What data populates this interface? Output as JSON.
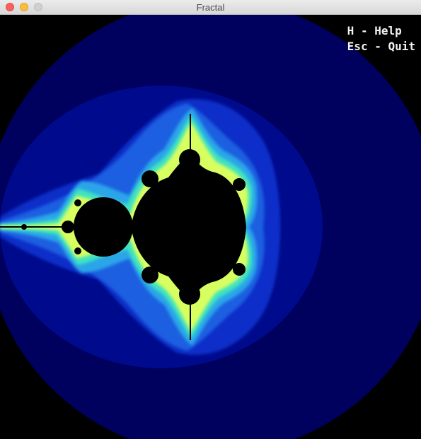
{
  "window": {
    "title": "Fractal"
  },
  "hud": {
    "help_label": "H - Help",
    "quit_label": "Esc - Quit"
  },
  "icons": {
    "close": "close-icon",
    "minimize": "minimize-icon",
    "zoom": "zoom-icon"
  },
  "colors": {
    "background": "#000000",
    "band_outer": "#00005e",
    "band_2": "#000a8c",
    "band_3": "#0a2fc8",
    "band_4": "#1b5fe0",
    "band_5": "#2aa6e8",
    "band_6": "#3fe3c0",
    "band_edge": "#d8ff60",
    "set": "#000000"
  }
}
